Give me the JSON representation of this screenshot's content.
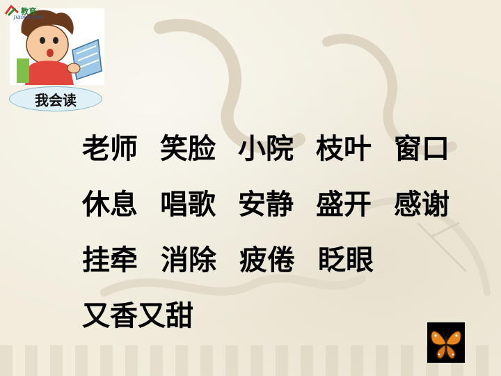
{
  "logo": {
    "text": "教育",
    "sub": "Jiaoku.com"
  },
  "badge": {
    "label": "我会读"
  },
  "words": [
    [
      "老师",
      "笑脸",
      "小院",
      "枝叶",
      "窗口"
    ],
    [
      "休息",
      "唱歌",
      "安静",
      "盛开",
      "感谢"
    ],
    [
      "挂牵",
      "消除",
      "疲倦",
      "眨眼"
    ],
    [
      "又香又甜"
    ]
  ],
  "colors": {
    "background": "#f1ecdc",
    "text": "#000000",
    "badge_fill": "#dff1f6",
    "badge_border": "#7fb7c9"
  },
  "icons": {
    "illustration": "boy-reading-book-icon",
    "nav": "butterfly-icon"
  }
}
